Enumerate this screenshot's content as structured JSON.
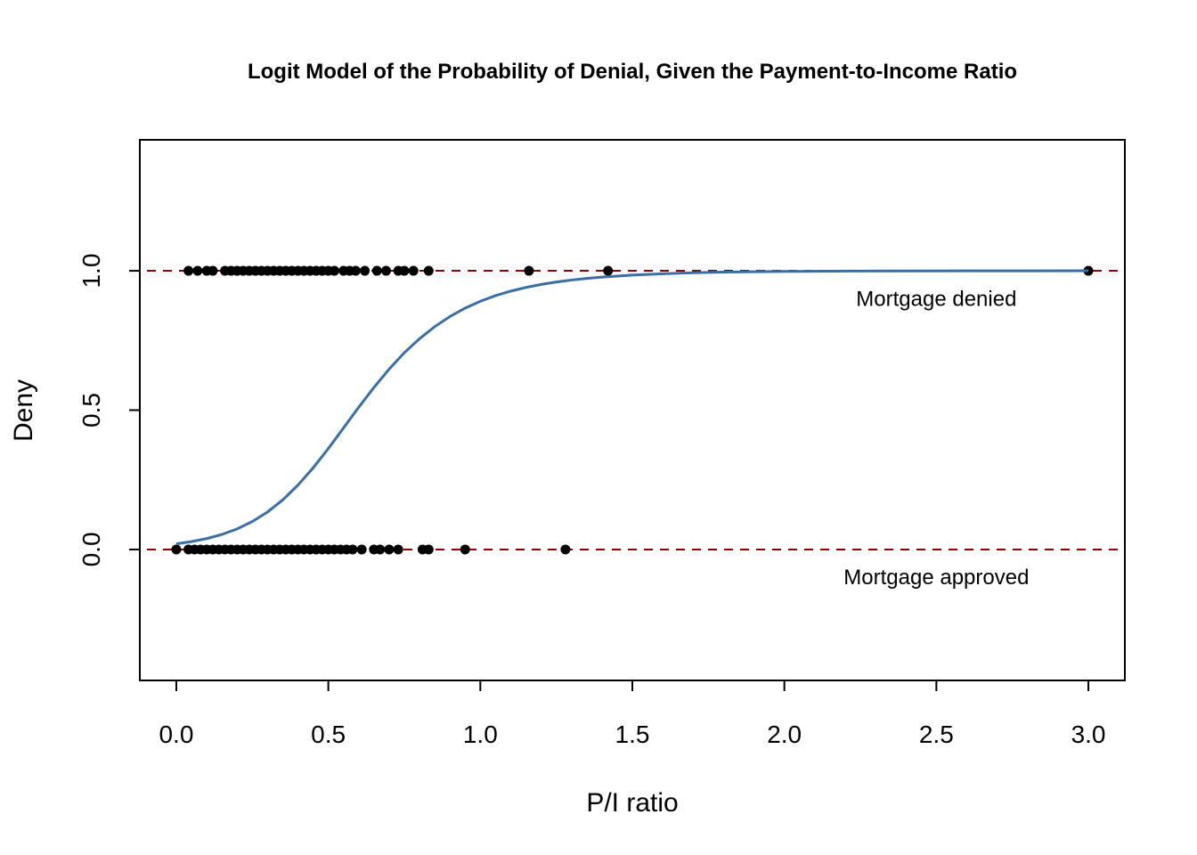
{
  "chart_data": {
    "type": "scatter",
    "title": "Logit Model of the Probability of Denial, Given the Payment-to-Income Ratio",
    "xlabel": "P/I ratio",
    "ylabel": "Deny",
    "xlim": [
      -0.12,
      3.12
    ],
    "ylim": [
      -0.47,
      1.47
    ],
    "x_ticks": [
      0.0,
      0.5,
      1.0,
      1.5,
      2.0,
      2.5,
      3.0
    ],
    "x_tick_labels": [
      "0.0",
      "0.5",
      "1.0",
      "1.5",
      "2.0",
      "2.5",
      "3.0"
    ],
    "y_ticks": [
      0.0,
      0.5,
      1.0
    ],
    "y_tick_labels": [
      "0.0",
      "0.5",
      "1.0"
    ],
    "grid": false,
    "reference_lines": [
      {
        "y": 1.0,
        "style": "dashed",
        "color": "#8b0000"
      },
      {
        "y": 0.0,
        "style": "dashed",
        "color": "#8b0000"
      }
    ],
    "annotations": [
      {
        "text": "Mortgage denied",
        "x": 2.5,
        "y": 0.9
      },
      {
        "text": "Mortgage approved",
        "x": 2.5,
        "y": -0.1
      }
    ],
    "series": [
      {
        "type": "scatter",
        "color": "#000000",
        "points": [
          {
            "x": 0.04,
            "y": 1
          },
          {
            "x": 0.07,
            "y": 1
          },
          {
            "x": 0.1,
            "y": 1
          },
          {
            "x": 0.12,
            "y": 1
          },
          {
            "x": 0.16,
            "y": 1
          },
          {
            "x": 0.18,
            "y": 1
          },
          {
            "x": 0.2,
            "y": 1
          },
          {
            "x": 0.22,
            "y": 1
          },
          {
            "x": 0.24,
            "y": 1
          },
          {
            "x": 0.26,
            "y": 1
          },
          {
            "x": 0.28,
            "y": 1
          },
          {
            "x": 0.3,
            "y": 1
          },
          {
            "x": 0.32,
            "y": 1
          },
          {
            "x": 0.34,
            "y": 1
          },
          {
            "x": 0.36,
            "y": 1
          },
          {
            "x": 0.38,
            "y": 1
          },
          {
            "x": 0.4,
            "y": 1
          },
          {
            "x": 0.42,
            "y": 1
          },
          {
            "x": 0.44,
            "y": 1
          },
          {
            "x": 0.46,
            "y": 1
          },
          {
            "x": 0.48,
            "y": 1
          },
          {
            "x": 0.5,
            "y": 1
          },
          {
            "x": 0.52,
            "y": 1
          },
          {
            "x": 0.55,
            "y": 1
          },
          {
            "x": 0.57,
            "y": 1
          },
          {
            "x": 0.59,
            "y": 1
          },
          {
            "x": 0.62,
            "y": 1
          },
          {
            "x": 0.66,
            "y": 1
          },
          {
            "x": 0.69,
            "y": 1
          },
          {
            "x": 0.73,
            "y": 1
          },
          {
            "x": 0.75,
            "y": 1
          },
          {
            "x": 0.78,
            "y": 1
          },
          {
            "x": 0.83,
            "y": 1
          },
          {
            "x": 1.16,
            "y": 1
          },
          {
            "x": 1.42,
            "y": 1
          },
          {
            "x": 3.0,
            "y": 1
          },
          {
            "x": 0.0,
            "y": 0
          },
          {
            "x": 0.04,
            "y": 0
          },
          {
            "x": 0.06,
            "y": 0
          },
          {
            "x": 0.08,
            "y": 0
          },
          {
            "x": 0.1,
            "y": 0
          },
          {
            "x": 0.12,
            "y": 0
          },
          {
            "x": 0.14,
            "y": 0
          },
          {
            "x": 0.16,
            "y": 0
          },
          {
            "x": 0.18,
            "y": 0
          },
          {
            "x": 0.2,
            "y": 0
          },
          {
            "x": 0.22,
            "y": 0
          },
          {
            "x": 0.24,
            "y": 0
          },
          {
            "x": 0.26,
            "y": 0
          },
          {
            "x": 0.28,
            "y": 0
          },
          {
            "x": 0.3,
            "y": 0
          },
          {
            "x": 0.32,
            "y": 0
          },
          {
            "x": 0.34,
            "y": 0
          },
          {
            "x": 0.36,
            "y": 0
          },
          {
            "x": 0.38,
            "y": 0
          },
          {
            "x": 0.4,
            "y": 0
          },
          {
            "x": 0.42,
            "y": 0
          },
          {
            "x": 0.44,
            "y": 0
          },
          {
            "x": 0.46,
            "y": 0
          },
          {
            "x": 0.48,
            "y": 0
          },
          {
            "x": 0.5,
            "y": 0
          },
          {
            "x": 0.52,
            "y": 0
          },
          {
            "x": 0.54,
            "y": 0
          },
          {
            "x": 0.56,
            "y": 0
          },
          {
            "x": 0.58,
            "y": 0
          },
          {
            "x": 0.61,
            "y": 0
          },
          {
            "x": 0.65,
            "y": 0
          },
          {
            "x": 0.67,
            "y": 0
          },
          {
            "x": 0.7,
            "y": 0
          },
          {
            "x": 0.73,
            "y": 0
          },
          {
            "x": 0.81,
            "y": 0
          },
          {
            "x": 0.83,
            "y": 0
          },
          {
            "x": 0.95,
            "y": 0
          },
          {
            "x": 1.28,
            "y": 0
          }
        ]
      },
      {
        "type": "line",
        "color": "#3a6ea5",
        "x": [
          0.0,
          0.05,
          0.1,
          0.15,
          0.2,
          0.25,
          0.3,
          0.35,
          0.4,
          0.45,
          0.5,
          0.55,
          0.6,
          0.65,
          0.7,
          0.75,
          0.8,
          0.85,
          0.9,
          0.95,
          1.0,
          1.05,
          1.1,
          1.15,
          1.2,
          1.25,
          1.3,
          1.35,
          1.4,
          1.5,
          1.6,
          1.7,
          1.8,
          2.0,
          2.2,
          2.4,
          2.6,
          2.8,
          3.0
        ],
        "y": [
          0.0202,
          0.0281,
          0.039,
          0.0538,
          0.0738,
          0.1002,
          0.1345,
          0.1778,
          0.2307,
          0.2927,
          0.3621,
          0.436,
          0.5103,
          0.5814,
          0.6472,
          0.7061,
          0.7563,
          0.7995,
          0.8359,
          0.866,
          0.8907,
          0.9108,
          0.9271,
          0.9403,
          0.951,
          0.9597,
          0.9668,
          0.9726,
          0.9773,
          0.9845,
          0.9895,
          0.9929,
          0.9952,
          0.9978,
          0.999,
          0.9995,
          0.9998,
          0.9999,
          1.0
        ]
      }
    ]
  }
}
